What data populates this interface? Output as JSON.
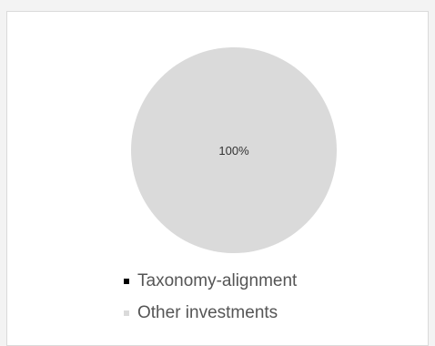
{
  "chart_data": {
    "type": "pie",
    "slices": [
      {
        "label": "Taxonomy-alignment",
        "value": 0,
        "color": "#000000",
        "data_label": ""
      },
      {
        "label": "Other investments",
        "value": 100,
        "color": "#dadada",
        "data_label": "100%"
      }
    ],
    "legend_position": "bottom"
  }
}
